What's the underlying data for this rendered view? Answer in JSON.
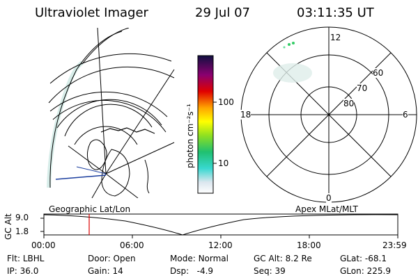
{
  "header": {
    "title": "Ultraviolet Imager",
    "date": "29 Jul 07",
    "time": "03:11:35 UT"
  },
  "colorbar": {
    "unit_label": "photon cm⁻²s⁻¹",
    "ticks": [
      "100",
      "10"
    ]
  },
  "polar_plot": {
    "top_label": "12",
    "bottom_label": "0",
    "left_label": "18",
    "right_label": "6",
    "ring_labels": [
      "60",
      "70",
      "80"
    ]
  },
  "timeline": {
    "yaxis_label": "GC Alt",
    "y_ticks": [
      "9.0",
      "1.8"
    ],
    "left_caption": "Geographic Lat/Lon",
    "right_caption": "Apex MLat/MLT",
    "x_ticks": [
      "00:00",
      "06:00",
      "12:00",
      "18:00",
      "23:59"
    ]
  },
  "footer": {
    "row1": [
      {
        "key": "Flt:",
        "val": "LBHL"
      },
      {
        "key": "Door:",
        "val": "Open"
      },
      {
        "key": "Mode:",
        "val": "Normal"
      },
      {
        "key": "GC Alt:",
        "val": "8.2 Re"
      },
      {
        "key": "GLat:",
        "val": "-68.1"
      }
    ],
    "row2": [
      {
        "key": "IP:",
        "val": "36.0"
      },
      {
        "key": "Gain:",
        "val": "14"
      },
      {
        "key": "Dsp:",
        "val": "-4.9"
      },
      {
        "key": "Seq:",
        "val": "39"
      },
      {
        "key": "GLon:",
        "val": "225.9"
      }
    ]
  },
  "colors": {
    "marker": "#dd0000",
    "aurora": "#b8ddd8"
  }
}
